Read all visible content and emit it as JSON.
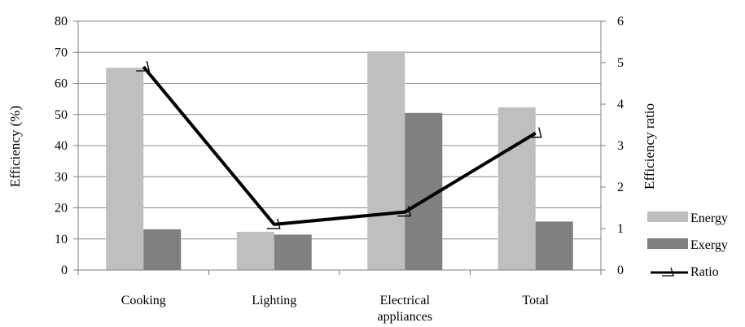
{
  "chart_data": {
    "type": "bar",
    "categories": [
      "Cooking",
      "Lighting",
      "Electrical appliances",
      "Total"
    ],
    "category_lines": [
      [
        "Cooking"
      ],
      [
        "Lighting"
      ],
      [
        "Electrical",
        "appliances"
      ],
      [
        "Total"
      ]
    ],
    "series": [
      {
        "name": "Energy",
        "axis": "left",
        "kind": "bar",
        "color": "#bfbfbf",
        "values": [
          65,
          12.3,
          70.3,
          52.3
        ]
      },
      {
        "name": "Exergy",
        "axis": "left",
        "kind": "bar",
        "color": "#808080",
        "values": [
          13.1,
          11.4,
          50.5,
          15.6
        ]
      },
      {
        "name": "Ratio",
        "axis": "right",
        "kind": "line",
        "color": "#000000",
        "values": [
          4.9,
          1.1,
          1.4,
          3.3
        ]
      }
    ],
    "ylabel": "Efficiency (%)",
    "y2label": "Efficiency ratio",
    "ylim": [
      0,
      80
    ],
    "y2lim": [
      0,
      6
    ],
    "yticks": [
      0,
      10,
      20,
      30,
      40,
      50,
      60,
      70,
      80
    ],
    "y2ticks": [
      0,
      1,
      2,
      3,
      4,
      5,
      6
    ],
    "grid": true,
    "legend_position": "right"
  }
}
